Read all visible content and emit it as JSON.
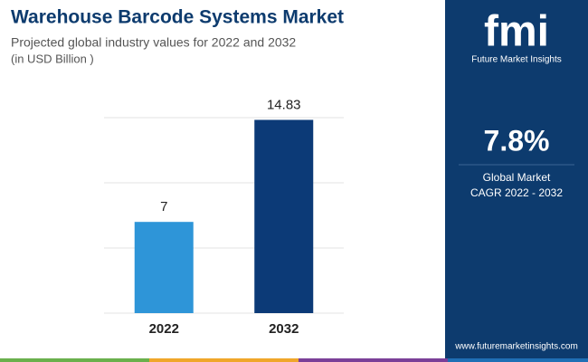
{
  "header": {
    "title": "Warehouse Barcode Systems Market",
    "subtitle": "Projected global industry values for 2022 and 2032",
    "unit": "(in USD Billion )"
  },
  "chart_data": {
    "type": "bar",
    "categories": [
      "2022",
      "2032"
    ],
    "values": [
      7,
      14.83
    ],
    "colors": [
      "#2e95d8",
      "#0c3a77"
    ],
    "ylim": [
      0,
      15
    ],
    "yticks": [
      0,
      5,
      10,
      15
    ],
    "grid": true
  },
  "sidebar": {
    "logo": "fmi",
    "brand": "Future Market Insights",
    "cagr": "7.8%",
    "cagr_label": [
      "Global Market",
      "CAGR 2022 - 2032"
    ],
    "url": "www.futuremarketinsights.com"
  }
}
